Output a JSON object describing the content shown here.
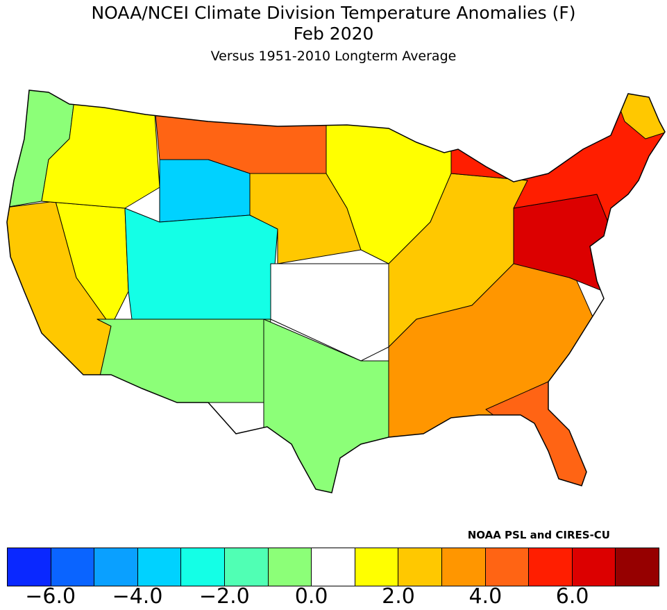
{
  "title": {
    "line1": "NOAA/NCEI Climate Division Temperature Anomalies (F)",
    "line2": "Feb 2020",
    "line3": "Versus 1951-2010 Longterm Average"
  },
  "credit": "NOAA PSL and CIRES-CU",
  "legend": {
    "colors": [
      "#0a28ff",
      "#0a64ff",
      "#0aa0ff",
      "#00d2ff",
      "#14ffe6",
      "#50ffb4",
      "#8cff78",
      "#ffffff",
      "#ffff00",
      "#ffc800",
      "#ff9600",
      "#ff6414",
      "#ff1e00",
      "#dc0000",
      "#960000"
    ],
    "ticks": [
      "-6.0",
      "-4.0",
      "-2.0",
      "0.0",
      "2.0",
      "4.0",
      "6.0"
    ]
  },
  "map_regions": [
    {
      "name": "pacific-northwest",
      "color": "#8cff78"
    },
    {
      "name": "california",
      "color": "#ffc800"
    },
    {
      "name": "great-basin",
      "color": "#ffff00"
    },
    {
      "name": "northern-rockies",
      "color": "#ffff00"
    },
    {
      "name": "wyoming",
      "color": "#00d2ff"
    },
    {
      "name": "colorado-utah",
      "color": "#14ffe6"
    },
    {
      "name": "northern-plains",
      "color": "#ff6414"
    },
    {
      "name": "central-plains",
      "color": "#ffc800"
    },
    {
      "name": "southwest",
      "color": "#8cff78"
    },
    {
      "name": "texas",
      "color": "#8cff78"
    },
    {
      "name": "southern-plains",
      "color": "#ffffff"
    },
    {
      "name": "upper-midwest",
      "color": "#ffff00"
    },
    {
      "name": "ohio-valley",
      "color": "#ffc800"
    },
    {
      "name": "southeast",
      "color": "#ff9600"
    },
    {
      "name": "florida",
      "color": "#ff6414"
    },
    {
      "name": "mid-atlantic",
      "color": "#dc0000"
    },
    {
      "name": "new-england",
      "color": "#ff1e00"
    },
    {
      "name": "maine",
      "color": "#ffc800"
    }
  ]
}
